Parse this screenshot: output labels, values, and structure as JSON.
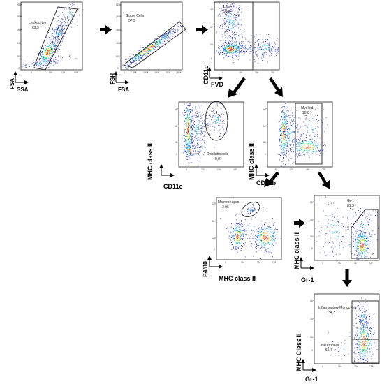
{
  "panels": [
    {
      "id": "p1",
      "xlabel": "SSA",
      "ylabel": "FSA",
      "yticks": [
        "256K",
        "200K",
        "150K",
        "100K",
        "50K",
        "0"
      ],
      "xticks": [
        "0",
        "",
        "10³",
        "10⁴",
        "10⁵"
      ],
      "gates": [
        {
          "name": "Leukocytes",
          "value": "69,3"
        }
      ]
    },
    {
      "id": "p2",
      "xlabel": "FSA",
      "ylabel": "FSH",
      "yticks": [
        "256K",
        "200K",
        "150K",
        "100K",
        "50K",
        "0"
      ],
      "xticks": [
        "0",
        "50K",
        "100K",
        "150K",
        "200K",
        "256K"
      ],
      "gates": [
        {
          "name": "Single Cells",
          "value": "57,3"
        }
      ]
    },
    {
      "id": "p3",
      "xlabel": "FVD",
      "ylabel": "CD11c",
      "yticks": [
        "10⁵",
        "10⁴",
        "10³",
        "0"
      ],
      "xticks": [
        "0",
        "10³",
        "10⁴",
        "10⁵"
      ],
      "gates": [
        {
          "name": "Live",
          "value": "98,4"
        }
      ]
    },
    {
      "id": "p4",
      "xlabel": "CD11c",
      "ylabel": "MHC class II",
      "yticks": [
        "10⁵",
        "10⁴",
        "10³",
        "0"
      ],
      "xticks": [
        "0",
        "10³",
        "10⁴",
        "10⁵"
      ],
      "gates": [
        {
          "name": "Dendritic cells",
          "value": "0,81"
        }
      ]
    },
    {
      "id": "p5",
      "xlabel": "CD11b",
      "ylabel": "MHC class II",
      "yticks": [
        "10⁵",
        "10⁴",
        "10³",
        "0"
      ],
      "xticks": [
        "0",
        "10³",
        "10⁴",
        "10⁵"
      ],
      "gates": [
        {
          "name": "Myeloid",
          "value": "10,8"
        }
      ]
    },
    {
      "id": "p6",
      "xlabel": "MHC class II",
      "ylabel": "F4/80",
      "yticks": [
        "10⁵",
        "10⁴",
        "10³",
        "0"
      ],
      "xticks": [
        "0",
        "10³",
        "10⁴",
        "10⁵"
      ],
      "gates": [
        {
          "name": "Macrophages",
          "value": "2.06"
        }
      ]
    },
    {
      "id": "p7",
      "xlabel": "Gr-1",
      "ylabel": "MHC class II",
      "yticks": [
        "10⁵",
        "10⁴",
        "10³",
        "0"
      ],
      "xticks": [
        "0",
        "10³",
        "10⁴",
        "10⁵"
      ],
      "gates": [
        {
          "name": "Gr-1",
          "value": "81,3"
        }
      ]
    },
    {
      "id": "p8",
      "xlabel": "Gr-1",
      "ylabel": "MHC Class II",
      "yticks": [
        "10⁵",
        "10⁴",
        "10³",
        "0"
      ],
      "xticks": [
        "0",
        "10³",
        "10⁴",
        "10⁵"
      ],
      "gates": [
        {
          "name": "Inflammatory Monocytes",
          "value": "34,3"
        },
        {
          "name": "Neutrophils",
          "value": "65,7"
        }
      ]
    }
  ],
  "colors": {
    "density": [
      "#1a22c8",
      "#1fa4e8",
      "#27d08a",
      "#f2e13a",
      "#f0401e"
    ],
    "sparse": "#2a3cb8",
    "arrow": "#000000",
    "gate": "#222222"
  }
}
